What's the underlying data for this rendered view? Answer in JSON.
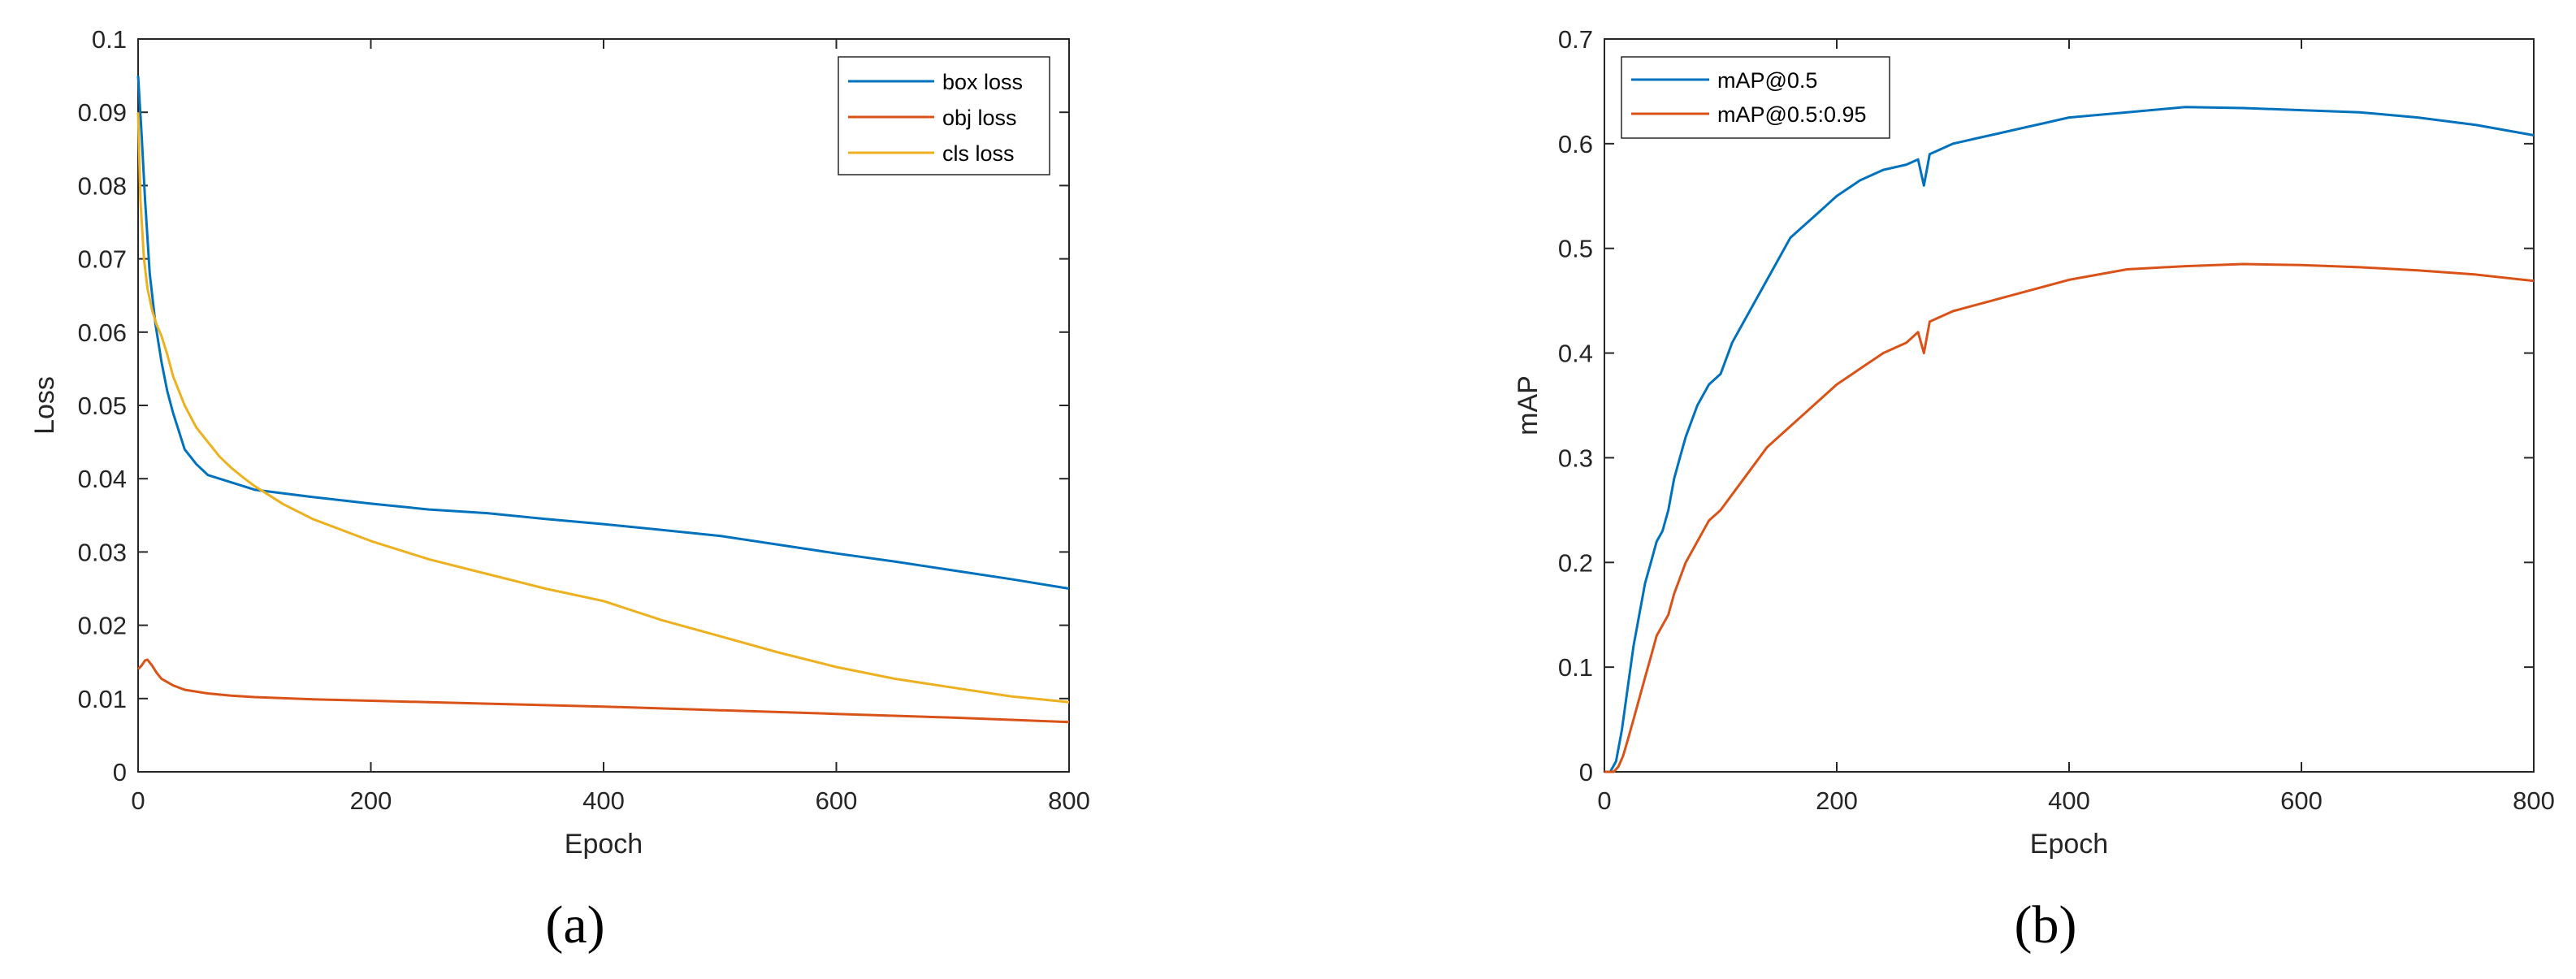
{
  "chart_data": [
    {
      "type": "line",
      "caption": "(a)",
      "xlabel": "Epoch",
      "ylabel": "Loss",
      "xlim": [
        0,
        800
      ],
      "ylim": [
        0,
        0.1
      ],
      "xticks": [
        "0",
        "200",
        "400",
        "600",
        "800"
      ],
      "yticks": [
        "0",
        "0.01",
        "0.02",
        "0.03",
        "0.04",
        "0.05",
        "0.06",
        "0.07",
        "0.08",
        "0.09",
        "0.1"
      ],
      "grid": false,
      "legend_position": "top-right",
      "series": [
        {
          "name": "box loss",
          "color": "#0072BD",
          "x": [
            0,
            3,
            6,
            10,
            15,
            20,
            25,
            30,
            40,
            50,
            60,
            80,
            100,
            150,
            200,
            250,
            300,
            350,
            400,
            450,
            500,
            550,
            600,
            650,
            700,
            750,
            800
          ],
          "y": [
            0.095,
            0.087,
            0.078,
            0.068,
            0.061,
            0.056,
            0.052,
            0.049,
            0.044,
            0.042,
            0.0405,
            0.0395,
            0.0385,
            0.0375,
            0.0366,
            0.0358,
            0.0353,
            0.0345,
            0.0338,
            0.033,
            0.0322,
            0.031,
            0.0298,
            0.0287,
            0.0275,
            0.0263,
            0.025
          ]
        },
        {
          "name": "obj loss",
          "color": "#D95319",
          "x": [
            0,
            3,
            6,
            8,
            12,
            16,
            20,
            30,
            40,
            60,
            80,
            100,
            150,
            200,
            300,
            400,
            500,
            600,
            700,
            800
          ],
          "y": [
            0.014,
            0.0145,
            0.0152,
            0.0153,
            0.0145,
            0.0135,
            0.0127,
            0.0118,
            0.0112,
            0.0107,
            0.0104,
            0.0102,
            0.0099,
            0.0097,
            0.0093,
            0.0089,
            0.0084,
            0.0079,
            0.0074,
            0.0068
          ]
        },
        {
          "name": "cls loss",
          "color": "#EDB120",
          "x": [
            0,
            2,
            5,
            8,
            12,
            16,
            20,
            25,
            30,
            40,
            50,
            60,
            70,
            80,
            90,
            100,
            125,
            150,
            200,
            250,
            300,
            350,
            400,
            450,
            500,
            550,
            600,
            650,
            700,
            750,
            800
          ],
          "y": [
            0.09,
            0.078,
            0.07,
            0.066,
            0.063,
            0.061,
            0.0595,
            0.057,
            0.054,
            0.05,
            0.047,
            0.045,
            0.043,
            0.0415,
            0.0402,
            0.039,
            0.0365,
            0.0345,
            0.0315,
            0.029,
            0.027,
            0.025,
            0.0233,
            0.0207,
            0.0185,
            0.0163,
            0.0143,
            0.0127,
            0.0115,
            0.0103,
            0.0095
          ]
        }
      ]
    },
    {
      "type": "line",
      "caption": "(b)",
      "xlabel": "Epoch",
      "ylabel": "mAP",
      "xlim": [
        0,
        800
      ],
      "ylim": [
        0,
        0.7
      ],
      "xticks": [
        "0",
        "200",
        "400",
        "600",
        "800"
      ],
      "yticks": [
        "0",
        "0.1",
        "0.2",
        "0.3",
        "0.4",
        "0.5",
        "0.6",
        "0.7"
      ],
      "grid": false,
      "legend_position": "top-left",
      "series": [
        {
          "name": "mAP@0.5",
          "color": "#0072BD",
          "x": [
            0,
            5,
            10,
            15,
            20,
            25,
            30,
            35,
            40,
            45,
            50,
            55,
            60,
            65,
            70,
            80,
            90,
            100,
            110,
            120,
            130,
            140,
            150,
            160,
            170,
            180,
            190,
            200,
            220,
            240,
            260,
            270,
            275,
            280,
            300,
            320,
            340,
            360,
            380,
            400,
            450,
            500,
            550,
            600,
            650,
            700,
            750,
            800
          ],
          "y": [
            0,
            0,
            0.01,
            0.04,
            0.08,
            0.12,
            0.15,
            0.18,
            0.2,
            0.22,
            0.23,
            0.25,
            0.28,
            0.3,
            0.32,
            0.35,
            0.37,
            0.38,
            0.41,
            0.43,
            0.45,
            0.47,
            0.49,
            0.51,
            0.52,
            0.53,
            0.54,
            0.55,
            0.565,
            0.575,
            0.58,
            0.585,
            0.56,
            0.59,
            0.6,
            0.605,
            0.61,
            0.615,
            0.62,
            0.625,
            0.63,
            0.635,
            0.634,
            0.632,
            0.63,
            0.625,
            0.618,
            0.608
          ]
        },
        {
          "name": "mAP@0.5:0.95",
          "color": "#D95319",
          "x": [
            0,
            8,
            12,
            16,
            20,
            25,
            30,
            35,
            40,
            45,
            50,
            55,
            60,
            70,
            80,
            90,
            100,
            120,
            140,
            160,
            180,
            200,
            220,
            240,
            260,
            270,
            275,
            280,
            300,
            350,
            400,
            450,
            500,
            550,
            600,
            650,
            700,
            750,
            800
          ],
          "y": [
            0,
            0,
            0.005,
            0.015,
            0.03,
            0.05,
            0.07,
            0.09,
            0.11,
            0.13,
            0.14,
            0.15,
            0.17,
            0.2,
            0.22,
            0.24,
            0.25,
            0.28,
            0.31,
            0.33,
            0.35,
            0.37,
            0.385,
            0.4,
            0.41,
            0.42,
            0.4,
            0.43,
            0.44,
            0.455,
            0.47,
            0.48,
            0.483,
            0.485,
            0.484,
            0.482,
            0.479,
            0.475,
            0.469
          ]
        }
      ]
    }
  ]
}
